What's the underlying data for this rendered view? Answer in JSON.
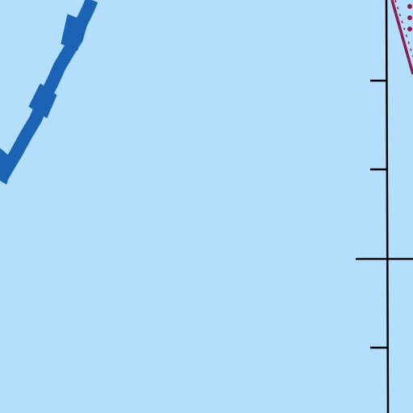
{
  "map": {
    "style": {
      "water_color": "#b3dffd",
      "highway_color": "#1a63b5",
      "boundary_color": "#000000",
      "rail_color": "#8b1e4c"
    },
    "features": [
      {
        "kind": "highway",
        "icon": "highway-line"
      },
      {
        "kind": "boundary",
        "icon": "meridian-line"
      },
      {
        "kind": "graticule-tick",
        "icon": "tick-mark"
      },
      {
        "kind": "railway",
        "icon": "rail-line"
      }
    ]
  }
}
